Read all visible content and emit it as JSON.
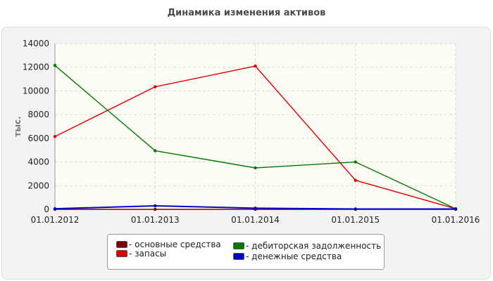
{
  "chart_data": {
    "type": "line",
    "title": "Динамика изменения активов",
    "ylabel": "тыс.",
    "xlabel": "",
    "categories": [
      "01.01.2012",
      "01.01.2013",
      "01.01.2014",
      "01.01.2015",
      "01.01.2016"
    ],
    "ylim": [
      0,
      14000
    ],
    "yticks": [
      0,
      2000,
      4000,
      6000,
      8000,
      10000,
      12000,
      14000
    ],
    "grid": true,
    "legend_position": "bottom",
    "series": [
      {
        "name": "- основные средства",
        "color": "#7a0000",
        "values": [
          0,
          0,
          0,
          0,
          0
        ]
      },
      {
        "name": "- запасы",
        "color": "#dd0000",
        "values": [
          6150,
          10350,
          12100,
          2450,
          50
        ]
      },
      {
        "name": "- дебиторская задолженность",
        "color": "#007a00",
        "values": [
          12150,
          4950,
          3500,
          4000,
          50
        ]
      },
      {
        "name": "- денежные средства",
        "color": "#0000cc",
        "values": [
          50,
          300,
          100,
          30,
          30
        ]
      }
    ]
  }
}
